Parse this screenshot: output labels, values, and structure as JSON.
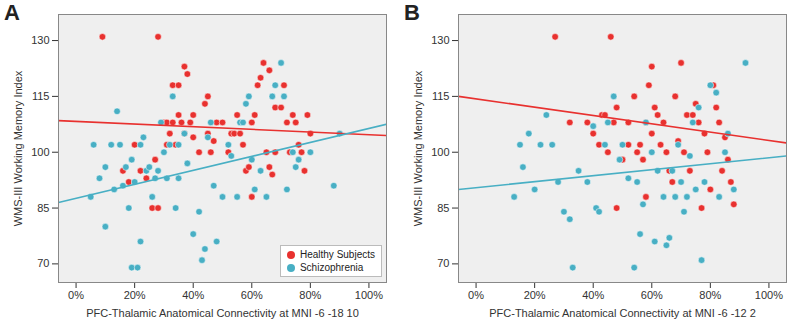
{
  "chart_data": [
    {
      "type": "scatter",
      "title": "A",
      "x_label": "PFC-Thalamic Anatomical Connectivity at MNI -6 -18 10",
      "y_label": "WMS-III Working Memory Index",
      "xlim": [
        -6,
        106
      ],
      "ylim": [
        65,
        137
      ],
      "xticks": [
        {
          "value": 0,
          "label": "0%"
        },
        {
          "value": 20,
          "label": "20%"
        },
        {
          "value": 40,
          "label": "40%"
        },
        {
          "value": 60,
          "label": "60%"
        },
        {
          "value": 80,
          "label": "80%"
        },
        {
          "value": 100,
          "label": "100%"
        }
      ],
      "yticks": [
        70,
        85,
        100,
        115,
        130
      ],
      "legend": "bottom-right",
      "series": [
        {
          "name": "Healthy Subjects",
          "color": "#e8312f",
          "x": [
            9,
            28,
            33,
            35,
            37,
            38,
            35,
            30,
            32,
            31,
            33,
            34,
            36,
            37,
            39,
            40,
            40,
            42,
            44,
            45,
            45,
            46,
            47,
            48,
            50,
            52,
            53,
            54,
            55,
            56,
            57,
            58,
            59,
            60,
            60,
            61,
            62,
            63,
            64,
            65,
            66,
            67,
            68,
            66,
            68,
            70,
            71,
            72,
            73,
            74,
            75,
            76,
            77,
            78,
            79,
            80,
            20,
            22,
            24,
            26,
            28,
            27,
            18,
            16,
            31
          ],
          "values": [
            131,
            131,
            118,
            118,
            123,
            121,
            110,
            108,
            105,
            108,
            108,
            102,
            108,
            105,
            108,
            104,
            110,
            100,
            113,
            115,
            105,
            100,
            103,
            108,
            108,
            100,
            105,
            105,
            110,
            105,
            102,
            95,
            96,
            88,
            108,
            110,
            118,
            120,
            124,
            100,
            96,
            94,
            100,
            122,
            112,
            112,
            118,
            108,
            100,
            110,
            108,
            102,
            100,
            95,
            110,
            105,
            102,
            95,
            93,
            85,
            85,
            98,
            92,
            95,
            102
          ],
          "fit_x": [
            -6,
            106
          ],
          "fit_values": [
            108.5,
            104.5
          ]
        },
        {
          "name": "Schizophrenia",
          "color": "#48afc4",
          "x": [
            5,
            6,
            8,
            10,
            10,
            12,
            13,
            14,
            15,
            16,
            17,
            18,
            19,
            19,
            20,
            21,
            22,
            22,
            23,
            24,
            25,
            26,
            27,
            28,
            29,
            30,
            31,
            32,
            33,
            34,
            35,
            35,
            37,
            38,
            40,
            42,
            43,
            44,
            45,
            46,
            47,
            48,
            50,
            52,
            53,
            55,
            56,
            57,
            58,
            59,
            60,
            61,
            63,
            65,
            67,
            68,
            70,
            71,
            72,
            74,
            75,
            76,
            80,
            88,
            90
          ],
          "values": [
            88,
            102,
            93,
            80,
            96,
            102,
            90,
            111,
            102,
            91,
            96,
            85,
            69,
            98,
            92,
            69,
            76,
            102,
            104,
            95,
            96,
            88,
            93,
            95,
            108,
            100,
            93,
            102,
            115,
            85,
            102,
            93,
            105,
            97,
            78,
            84,
            71,
            74,
            104,
            108,
            91,
            76,
            88,
            102,
            99,
            88,
            108,
            108,
            113,
            115,
            98,
            90,
            95,
            88,
            115,
            118,
            124,
            115,
            90,
            100,
            96,
            98,
            100,
            91,
            105
          ],
          "fit_x": [
            -6,
            106
          ],
          "fit_values": [
            86.5,
            107.5
          ]
        }
      ]
    },
    {
      "type": "scatter",
      "title": "B",
      "x_label": "PFC-Thalamic Anatomical Connectivity at MNI -6 -12 2",
      "y_label": "WMS-III Working Memory Index",
      "xlim": [
        -6,
        106
      ],
      "ylim": [
        65,
        137
      ],
      "xticks": [
        {
          "value": 0,
          "label": "0%"
        },
        {
          "value": 20,
          "label": "20%"
        },
        {
          "value": 40,
          "label": "40%"
        },
        {
          "value": 60,
          "label": "60%"
        },
        {
          "value": 80,
          "label": "80%"
        },
        {
          "value": 100,
          "label": "100%"
        }
      ],
      "yticks": [
        70,
        85,
        100,
        115,
        130
      ],
      "series": [
        {
          "name": "Healthy Subjects",
          "color": "#e8312f",
          "x": [
            27,
            46,
            32,
            38,
            40,
            42,
            43,
            44,
            45,
            47,
            48,
            50,
            52,
            54,
            55,
            56,
            58,
            59,
            60,
            60,
            61,
            62,
            63,
            64,
            65,
            66,
            67,
            68,
            69,
            70,
            71,
            72,
            73,
            74,
            75,
            76,
            77,
            78,
            79,
            80,
            81,
            82,
            83,
            84,
            85,
            86,
            87,
            88,
            48,
            58,
            52,
            57
          ],
          "values": [
            131,
            131,
            108,
            108,
            105,
            102,
            110,
            110,
            100,
            108,
            112,
            98,
            102,
            115,
            100,
            102,
            108,
            118,
            123,
            105,
            112,
            110,
            102,
            108,
            100,
            95,
            92,
            115,
            103,
            124,
            100,
            110,
            95,
            110,
            113,
            108,
            85,
            105,
            100,
            90,
            118,
            112,
            108,
            95,
            104,
            98,
            92,
            86,
            85,
            88,
            108,
            98
          ],
          "fit_x": [
            -6,
            106
          ],
          "fit_values": [
            115,
            102.5
          ]
        },
        {
          "name": "Schizophrenia",
          "color": "#48afc4",
          "x": [
            13,
            15,
            16,
            18,
            20,
            22,
            24,
            26,
            28,
            30,
            32,
            33,
            35,
            38,
            40,
            41,
            42,
            44,
            45,
            47,
            49,
            50,
            52,
            54,
            55,
            56,
            57,
            58,
            60,
            61,
            62,
            64,
            65,
            66,
            67,
            68,
            69,
            70,
            71,
            72,
            73,
            74,
            75,
            76,
            77,
            78,
            80,
            82,
            83,
            85,
            86,
            88,
            92
          ],
          "values": [
            88,
            102,
            96,
            105,
            90,
            102,
            110,
            102,
            92,
            84,
            82,
            69,
            95,
            92,
            107,
            85,
            84,
            102,
            108,
            115,
            98,
            102,
            93,
            69,
            92,
            78,
            86,
            108,
            100,
            76,
            95,
            88,
            75,
            77,
            95,
            88,
            102,
            92,
            84,
            88,
            99,
            108,
            90,
            112,
            71,
            92,
            118,
            116,
            88,
            100,
            105,
            90,
            124
          ],
          "fit_x": [
            -6,
            106
          ],
          "fit_values": [
            90,
            99
          ]
        }
      ]
    }
  ]
}
